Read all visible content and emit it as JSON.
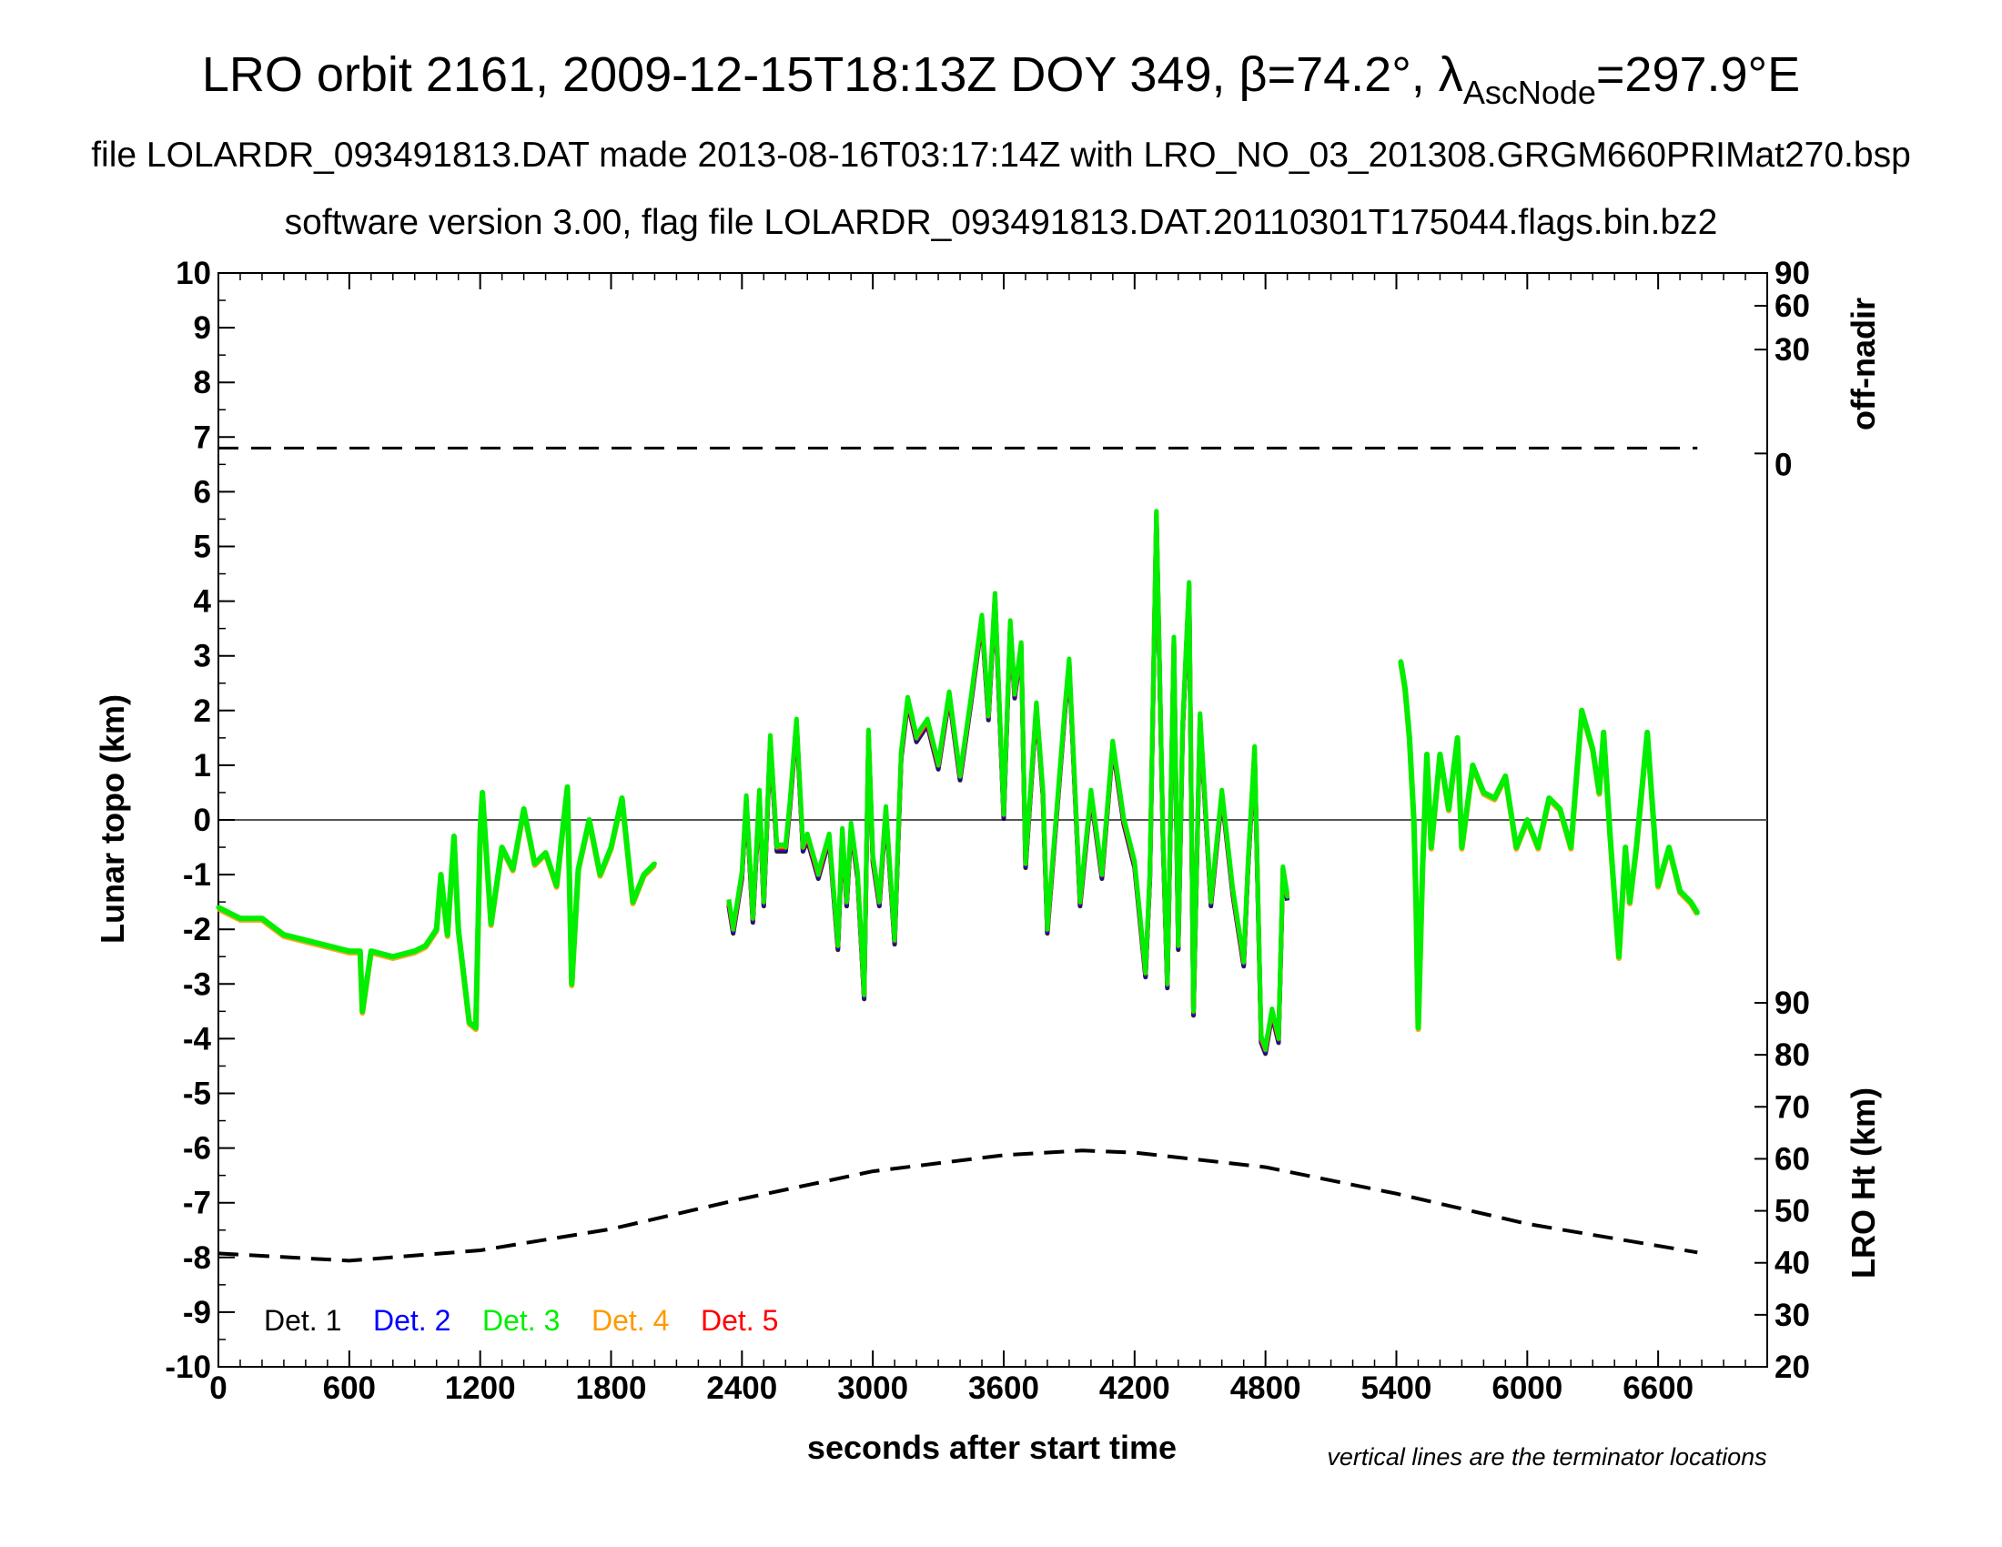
{
  "chart_data": {
    "type": "scatter",
    "title_main": "LRO orbit 2161, 2009-12-15T18:13Z DOY 349, β=74.2°, λ",
    "title_sub": "AscNode",
    "title_tail": "=297.9°E",
    "subtitle_1": "file LOLARDR_093491813.DAT made 2013-08-16T03:17:14Z with LRO_NO_03_201308.GRGM660PRIMat270.bsp",
    "subtitle_2": "software version 3.00, flag file LOLARDR_093491813.DAT.20110301T175044.flags.bin.bz2",
    "xlabel": "seconds after start time",
    "ylabel_left": "Lunar topo (km)",
    "ylabel_right_top": "off-nadir",
    "ylabel_right_bottom": "LRO Ht (km)",
    "note": "vertical lines are the terminator locations",
    "xlim": [
      0,
      7100
    ],
    "ylim": [
      -10,
      10
    ],
    "x_ticks": [
      "0",
      "600",
      "1200",
      "1800",
      "2400",
      "3000",
      "3600",
      "4200",
      "4800",
      "5400",
      "6000",
      "6600"
    ],
    "y_ticks": [
      "10",
      "9",
      "8",
      "7",
      "6",
      "5",
      "4",
      "3",
      "2",
      "1",
      "0",
      "-1",
      "-2",
      "-3",
      "-4",
      "-5",
      "-6",
      "-7",
      "-8",
      "-9",
      "-10"
    ],
    "offnadir_ticks": [
      "90",
      "60",
      "30",
      "0"
    ],
    "offnadir_tick_y": [
      10,
      9.4,
      8.6,
      6.7
    ],
    "height_ticks": [
      "90",
      "80",
      "70",
      "60",
      "50",
      "40",
      "30",
      "20"
    ],
    "height_ylim": [
      20,
      90
    ],
    "legend": [
      {
        "name": "Det. 1",
        "color": "#000000"
      },
      {
        "name": "Det. 2",
        "color": "#0000ff"
      },
      {
        "name": "Det. 3",
        "color": "#00ee00"
      },
      {
        "name": "Det. 4",
        "color": "#ff9900"
      },
      {
        "name": "Det. 5",
        "color": "#ff0000"
      }
    ],
    "offnadir_line": {
      "x": [
        0,
        6780
      ],
      "y": [
        6.8,
        6.8
      ]
    },
    "lro_height_km": {
      "x": [
        0,
        600,
        1200,
        1800,
        2400,
        3000,
        3600,
        3960,
        4200,
        4800,
        5400,
        6000,
        6780
      ],
      "y": [
        41.8,
        40.4,
        42.4,
        46.5,
        52.3,
        57.6,
        60.7,
        61.6,
        61.2,
        58.4,
        53.3,
        47.5,
        42.0
      ]
    },
    "topo_segments": [
      {
        "detectors": "Det. 3 / Det. 4 dominant",
        "x": [
          0,
          100,
          200,
          300,
          400,
          500,
          600,
          650,
          660,
          700,
          800,
          900,
          950,
          1000,
          1020,
          1050,
          1080,
          1100,
          1150,
          1180,
          1200,
          1210,
          1250,
          1300,
          1350,
          1400,
          1450,
          1500,
          1550,
          1600,
          1620,
          1650,
          1700,
          1750,
          1800,
          1850,
          1900,
          1950,
          2000
        ],
        "y": [
          -1.6,
          -1.8,
          -1.8,
          -2.1,
          -2.2,
          -2.3,
          -2.4,
          -2.4,
          -3.5,
          -2.4,
          -2.5,
          -2.4,
          -2.3,
          -2.0,
          -1.0,
          -2.1,
          -0.3,
          -2.0,
          -3.7,
          -3.8,
          -0.2,
          0.5,
          -1.9,
          -0.5,
          -0.9,
          0.2,
          -0.8,
          -0.6,
          -1.2,
          0.6,
          -3.0,
          -0.9,
          0.0,
          -1.0,
          -0.5,
          0.4,
          -1.5,
          -1.0,
          -0.8
        ]
      },
      {
        "detectors": "all detectors",
        "x": [
          2340,
          2360,
          2400,
          2420,
          2450,
          2480,
          2500,
          2530,
          2560,
          2600,
          2620,
          2650,
          2680,
          2700,
          2750,
          2800,
          2840,
          2860,
          2880,
          2900,
          2930,
          2960,
          2980,
          3000,
          3030,
          3060,
          3100,
          3130,
          3160,
          3200,
          3250,
          3300,
          3350,
          3400,
          3450,
          3500,
          3530,
          3560,
          3600,
          3630,
          3650,
          3680,
          3700,
          3750,
          3780,
          3800,
          3850,
          3880,
          3900,
          3950,
          4000,
          4050,
          4100,
          4150,
          4200,
          4250,
          4270,
          4300,
          4330,
          4350,
          4380,
          4400,
          4420,
          4450,
          4470,
          4500,
          4550,
          4600,
          4650,
          4700,
          4720,
          4750,
          4780,
          4800,
          4830,
          4860,
          4880,
          4900
        ],
        "y": [
          -1.5,
          -2.0,
          -1.0,
          0.4,
          -1.8,
          0.5,
          -1.5,
          1.5,
          -0.5,
          -0.5,
          0.3,
          1.8,
          -0.5,
          -0.3,
          -1.0,
          -0.3,
          -2.3,
          -0.2,
          -1.5,
          -0.1,
          -1.0,
          -3.2,
          1.6,
          -0.7,
          -1.5,
          0.2,
          -2.2,
          1.2,
          2.2,
          1.5,
          1.8,
          1.0,
          2.3,
          0.8,
          2.2,
          3.7,
          1.9,
          4.1,
          0.1,
          3.6,
          2.3,
          3.2,
          -0.8,
          2.1,
          0.5,
          -2.0,
          0.5,
          2.0,
          2.9,
          -1.5,
          0.5,
          -1.0,
          1.4,
          0.0,
          -0.8,
          -2.8,
          -1.0,
          5.6,
          -0.3,
          -3.0,
          3.3,
          -2.3,
          1.7,
          4.3,
          -3.5,
          1.9,
          -1.5,
          0.5,
          -1.3,
          -2.6,
          -0.8,
          1.3,
          -4.0,
          -4.2,
          -3.5,
          -4.0,
          -0.9,
          -1.4
        ]
      },
      {
        "detectors": "Det. 3 / Det. 4 dominant",
        "x": [
          5420,
          5440,
          5460,
          5480,
          5490,
          5500,
          5520,
          5540,
          5560,
          5600,
          5640,
          5680,
          5700,
          5750,
          5800,
          5850,
          5900,
          5950,
          6000,
          6050,
          6100,
          6150,
          6200,
          6230,
          6250,
          6300,
          6330,
          6350,
          6380,
          6420,
          6450,
          6470,
          6500,
          6550,
          6600,
          6650,
          6700,
          6750,
          6780
        ],
        "y": [
          2.9,
          2.4,
          1.5,
          0.0,
          -1.5,
          -3.8,
          -0.9,
          1.2,
          -0.5,
          1.2,
          0.2,
          1.5,
          -0.5,
          1.0,
          0.5,
          0.4,
          0.8,
          -0.5,
          0.0,
          -0.5,
          0.4,
          0.2,
          -0.5,
          1.0,
          2.0,
          1.3,
          0.5,
          1.6,
          -0.3,
          -2.5,
          -0.5,
          -1.5,
          -0.5,
          1.6,
          -1.2,
          -0.5,
          -1.3,
          -1.5,
          -1.7
        ]
      }
    ]
  }
}
